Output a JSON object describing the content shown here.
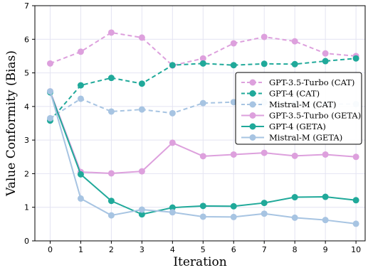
{
  "chart_data": {
    "type": "line",
    "title": "",
    "xlabel": "Iteration",
    "ylabel": "Value Conformity (Bias)",
    "x": [
      0,
      1,
      2,
      3,
      4,
      5,
      6,
      7,
      8,
      9,
      10
    ],
    "xlim": [
      -0.5,
      10.3
    ],
    "ylim": [
      0,
      7
    ],
    "xticks": [
      "0",
      "1",
      "2",
      "3",
      "4",
      "5",
      "6",
      "7",
      "8",
      "9",
      "10"
    ],
    "yticks": [
      "0",
      "1",
      "2",
      "3",
      "4",
      "5",
      "6",
      "7"
    ],
    "grid": true,
    "legend_position": "center-right",
    "series": [
      {
        "name": "GPT-3.5-Turbo (CAT)",
        "color": "#dda0dd",
        "dash": true,
        "values": [
          5.28,
          5.63,
          6.2,
          6.05,
          5.22,
          5.43,
          5.88,
          6.07,
          5.94,
          5.58,
          5.5
        ]
      },
      {
        "name": "GPT-4 (CAT)",
        "color": "#20a99a",
        "dash": true,
        "values": [
          3.58,
          4.63,
          4.85,
          4.68,
          5.23,
          5.28,
          5.23,
          5.27,
          5.26,
          5.35,
          5.43
        ]
      },
      {
        "name": "Mistral-M (CAT)",
        "color": "#a7c4e2",
        "dash": true,
        "values": [
          3.65,
          4.23,
          3.85,
          3.91,
          3.8,
          4.1,
          4.13,
          4.12,
          4.09,
          4.07,
          4.07
        ]
      },
      {
        "name": "GPT-3.5-Turbo (GETA)",
        "color": "#dda0dd",
        "dash": false,
        "values": [
          4.45,
          2.05,
          2.01,
          2.07,
          2.92,
          2.52,
          2.57,
          2.62,
          2.53,
          2.57,
          2.5
        ]
      },
      {
        "name": "GPT-4 (GETA)",
        "color": "#20a99a",
        "dash": false,
        "values": [
          4.42,
          1.98,
          1.19,
          0.79,
          0.99,
          1.04,
          1.03,
          1.13,
          1.3,
          1.31,
          1.21
        ]
      },
      {
        "name": "Mistral-M (GETA)",
        "color": "#a7c4e2",
        "dash": false,
        "values": [
          4.45,
          1.26,
          0.76,
          0.93,
          0.85,
          0.72,
          0.71,
          0.81,
          0.69,
          0.62,
          0.51
        ]
      }
    ]
  }
}
